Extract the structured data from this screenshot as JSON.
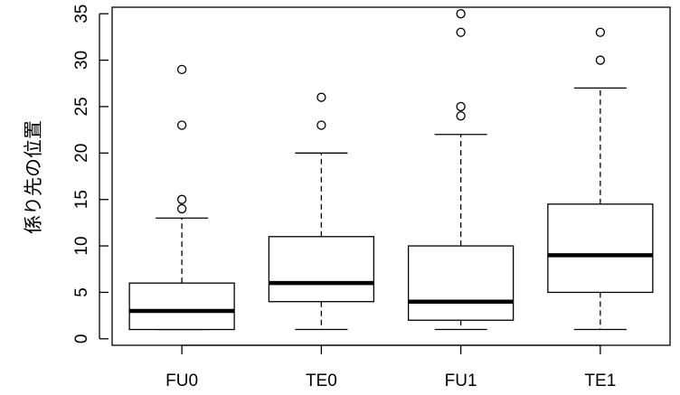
{
  "chart_data": {
    "type": "boxplot",
    "title": "",
    "xlabel": "",
    "ylabel": "係り先の位置",
    "ylim": [
      -0.7,
      35.7
    ],
    "yticks": [
      0,
      5,
      10,
      15,
      20,
      25,
      30,
      35
    ],
    "grid": false,
    "categories": [
      "FU0",
      "TE0",
      "FU1",
      "TE1"
    ],
    "boxes": [
      {
        "category": "FU0",
        "whisker_low": 1,
        "q1": 1,
        "median": 3,
        "q3": 6,
        "whisker_high": 13,
        "outliers": [
          14,
          15,
          23,
          29
        ]
      },
      {
        "category": "TE0",
        "whisker_low": 1,
        "q1": 4,
        "median": 6,
        "q3": 11,
        "whisker_high": 20,
        "outliers": [
          23,
          26
        ]
      },
      {
        "category": "FU1",
        "whisker_low": 1,
        "q1": 2,
        "median": 4,
        "q3": 10,
        "whisker_high": 22,
        "outliers": [
          24,
          25,
          33,
          35
        ]
      },
      {
        "category": "TE1",
        "whisker_low": 1,
        "q1": 5,
        "median": 9,
        "q3": 14.5,
        "whisker_high": 27,
        "outliers": [
          30,
          33
        ]
      }
    ]
  },
  "colors": {
    "stroke": "#000000",
    "background": "#ffffff"
  }
}
